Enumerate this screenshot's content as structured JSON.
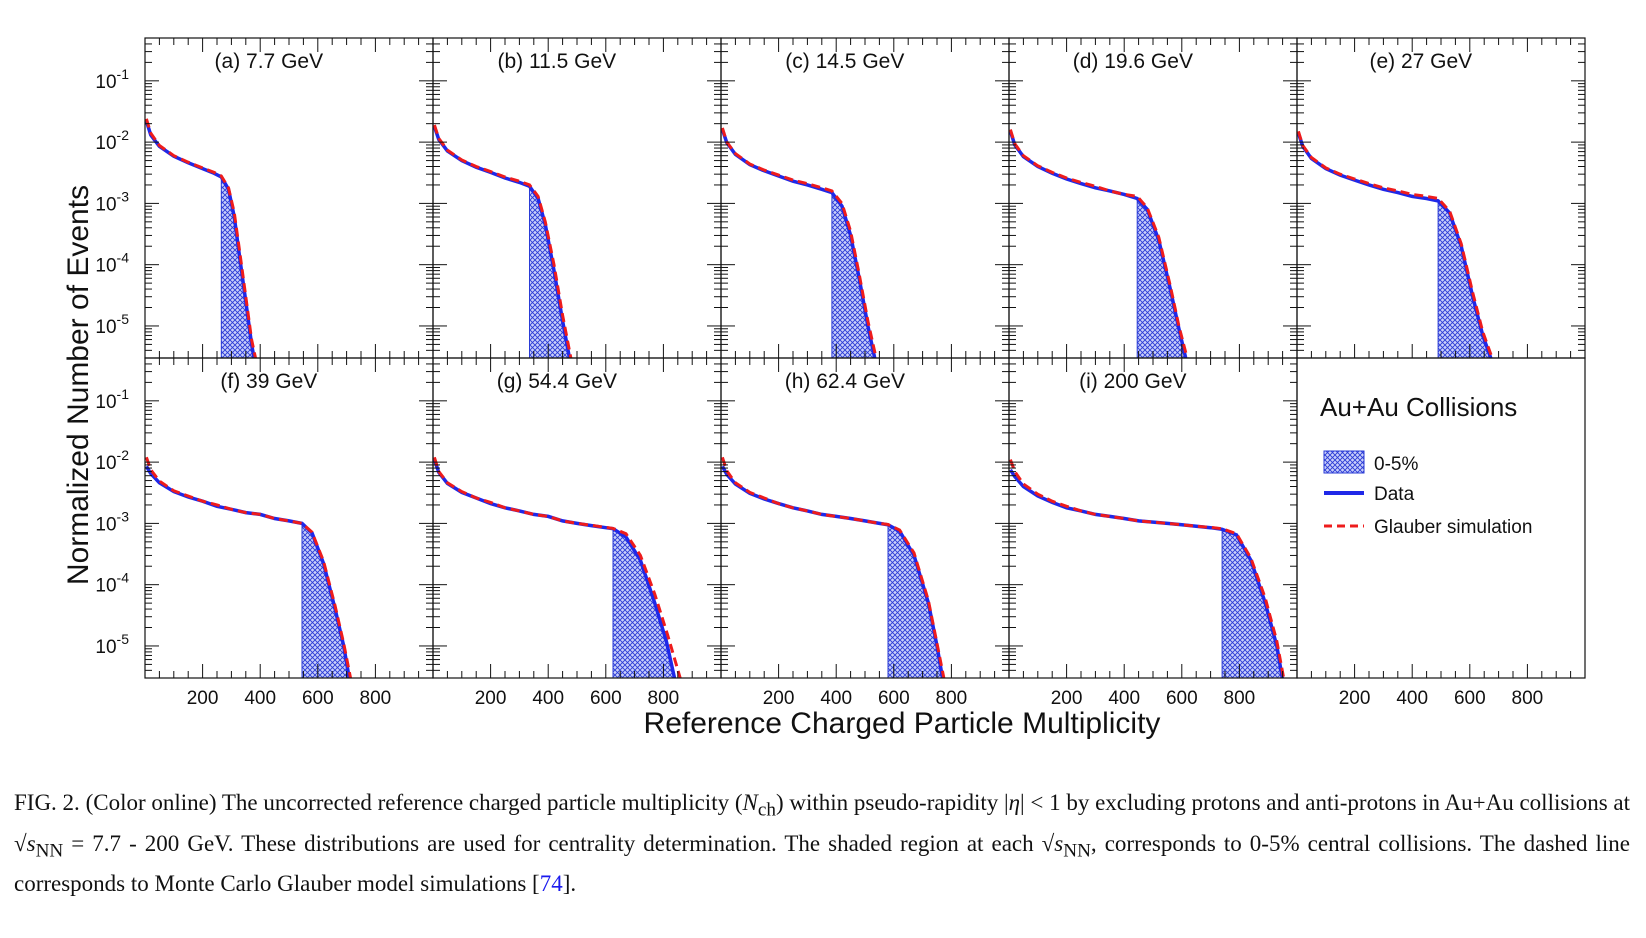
{
  "figure": {
    "ylabel": "Normalized Number of Events",
    "xlabel": "Reference Charged Particle Multiplicity",
    "legend": {
      "title": "Au+Au Collisions",
      "entries": [
        "0-5%",
        "Data",
        "Glauber simulation"
      ]
    }
  },
  "colors": {
    "data": "#1f28e8",
    "glauber": "#ee1c1c",
    "shade": "#2a3bd6",
    "axis": "#111111"
  },
  "chart_data": [
    {
      "type": "line",
      "title": "(a) 7.7 GeV",
      "yscale": "log",
      "xlim": [
        0,
        1000
      ],
      "ylim": [
        3e-06,
        0.5
      ],
      "xticks": [
        200,
        400,
        600,
        800
      ],
      "yticks": [
        "10^-1",
        "10^-2",
        "10^-3",
        "10^-4",
        "10^-5"
      ],
      "shaded_range": [
        265,
        380
      ],
      "series": [
        {
          "name": "Data",
          "x": [
            5,
            20,
            50,
            100,
            150,
            200,
            240,
            265,
            290,
            310,
            330,
            350,
            370,
            380
          ],
          "y": [
            0.022,
            0.013,
            0.0085,
            0.0059,
            0.0046,
            0.0037,
            0.0031,
            0.0027,
            0.0017,
            0.0006,
            0.00012,
            2.5e-05,
            5e-06,
            2.8e-06
          ]
        },
        {
          "name": "Glauber simulation",
          "x": [
            5,
            20,
            50,
            100,
            150,
            200,
            240,
            265,
            290,
            310,
            330,
            350,
            370,
            385
          ],
          "y": [
            0.024,
            0.014,
            0.0088,
            0.006,
            0.0047,
            0.0038,
            0.0032,
            0.0028,
            0.0018,
            0.0007,
            0.00015,
            3e-05,
            6e-06,
            2.8e-06
          ]
        }
      ]
    },
    {
      "type": "line",
      "title": "(b) 11.5 GeV",
      "yscale": "log",
      "xlim": [
        0,
        1000
      ],
      "ylim": [
        3e-06,
        0.5
      ],
      "xticks": [
        200,
        400,
        600,
        800
      ],
      "yticks": [
        "10^-1",
        "10^-2",
        "10^-3",
        "10^-4",
        "10^-5"
      ],
      "shaded_range": [
        335,
        480
      ],
      "series": [
        {
          "name": "Data",
          "x": [
            5,
            20,
            50,
            100,
            150,
            200,
            250,
            300,
            335,
            365,
            390,
            420,
            450,
            475
          ],
          "y": [
            0.018,
            0.011,
            0.0072,
            0.005,
            0.0039,
            0.0032,
            0.0026,
            0.0022,
            0.0019,
            0.0012,
            0.00045,
            8e-05,
            1.2e-05,
            2.8e-06
          ]
        },
        {
          "name": "Glauber simulation",
          "x": [
            5,
            20,
            50,
            100,
            150,
            200,
            250,
            300,
            335,
            365,
            390,
            420,
            450,
            480
          ],
          "y": [
            0.019,
            0.0115,
            0.0074,
            0.0051,
            0.004,
            0.0033,
            0.0027,
            0.0023,
            0.002,
            0.0013,
            0.0005,
            0.0001,
            1.5e-05,
            2.8e-06
          ]
        }
      ]
    },
    {
      "type": "line",
      "title": "(c) 14.5 GeV",
      "yscale": "log",
      "xlim": [
        0,
        1000
      ],
      "ylim": [
        3e-06,
        0.5
      ],
      "xticks": [
        200,
        400,
        600,
        800
      ],
      "yticks": [
        "10^-1",
        "10^-2",
        "10^-3",
        "10^-4",
        "10^-5"
      ],
      "shaded_range": [
        385,
        540
      ],
      "series": [
        {
          "name": "Data",
          "x": [
            5,
            20,
            50,
            100,
            150,
            200,
            250,
            300,
            350,
            385,
            420,
            450,
            480,
            510,
            535
          ],
          "y": [
            0.016,
            0.0098,
            0.0063,
            0.0043,
            0.0034,
            0.0028,
            0.0023,
            0.002,
            0.0017,
            0.0015,
            0.0009,
            0.0003,
            6e-05,
            1e-05,
            2.8e-06
          ]
        },
        {
          "name": "Glauber simulation",
          "x": [
            5,
            20,
            50,
            100,
            150,
            200,
            250,
            300,
            350,
            385,
            420,
            450,
            480,
            510,
            540
          ],
          "y": [
            0.017,
            0.01,
            0.0065,
            0.0044,
            0.0035,
            0.0029,
            0.0024,
            0.0021,
            0.0018,
            0.0016,
            0.001,
            0.00035,
            7e-05,
            1.2e-05,
            2.8e-06
          ]
        }
      ]
    },
    {
      "type": "line",
      "title": "(d) 19.6 GeV",
      "yscale": "log",
      "xlim": [
        0,
        1000
      ],
      "ylim": [
        3e-06,
        0.5
      ],
      "xticks": [
        200,
        400,
        600,
        800
      ],
      "yticks": [
        "10^-1",
        "10^-2",
        "10^-3",
        "10^-4",
        "10^-5"
      ],
      "shaded_range": [
        445,
        615
      ],
      "series": [
        {
          "name": "Data",
          "x": [
            5,
            20,
            50,
            100,
            150,
            200,
            250,
            300,
            350,
            400,
            445,
            480,
            520,
            560,
            590,
            615
          ],
          "y": [
            0.015,
            0.009,
            0.0058,
            0.004,
            0.0031,
            0.0025,
            0.0021,
            0.0018,
            0.0016,
            0.0014,
            0.0012,
            0.0008,
            0.00025,
            4e-05,
            9e-06,
            2.8e-06
          ]
        },
        {
          "name": "Glauber simulation",
          "x": [
            5,
            20,
            50,
            100,
            150,
            200,
            250,
            300,
            350,
            400,
            445,
            480,
            520,
            560,
            590,
            620
          ],
          "y": [
            0.016,
            0.0094,
            0.006,
            0.0041,
            0.0032,
            0.0026,
            0.0022,
            0.0019,
            0.0016,
            0.0014,
            0.0013,
            0.00085,
            0.00028,
            4.5e-05,
            1e-05,
            2.8e-06
          ]
        }
      ]
    },
    {
      "type": "line",
      "title": "(e) 27 GeV",
      "yscale": "log",
      "xlim": [
        0,
        1000
      ],
      "ylim": [
        3e-06,
        0.5
      ],
      "xticks": [
        200,
        400,
        600,
        800
      ],
      "yticks": [
        "10^-1",
        "10^-2",
        "10^-3",
        "10^-4",
        "10^-5"
      ],
      "shaded_range": [
        490,
        675
      ],
      "series": [
        {
          "name": "Data",
          "x": [
            5,
            20,
            50,
            100,
            150,
            200,
            250,
            300,
            350,
            400,
            450,
            490,
            530,
            570,
            610,
            645,
            675
          ],
          "y": [
            0.014,
            0.0085,
            0.0054,
            0.0037,
            0.0029,
            0.0024,
            0.002,
            0.0017,
            0.0015,
            0.0013,
            0.0012,
            0.0011,
            0.0007,
            0.0002,
            3e-05,
            7e-06,
            2.8e-06
          ]
        },
        {
          "name": "Glauber simulation",
          "x": [
            5,
            20,
            50,
            100,
            150,
            200,
            250,
            300,
            350,
            400,
            450,
            490,
            530,
            570,
            610,
            645,
            680
          ],
          "y": [
            0.015,
            0.0088,
            0.0056,
            0.0038,
            0.003,
            0.0025,
            0.0021,
            0.0018,
            0.0016,
            0.0014,
            0.0013,
            0.0012,
            0.00075,
            0.00022,
            3.5e-05,
            8e-06,
            2.8e-06
          ]
        }
      ]
    },
    {
      "type": "line",
      "title": "(f) 39 GeV",
      "yscale": "log",
      "xlim": [
        0,
        1000
      ],
      "ylim": [
        3e-06,
        0.5
      ],
      "xticks": [
        200,
        400,
        600,
        800
      ],
      "yticks": [
        "10^-1",
        "10^-2",
        "10^-3",
        "10^-4",
        "10^-5"
      ],
      "shaded_range": [
        545,
        710
      ],
      "series": [
        {
          "name": "Data",
          "x": [
            5,
            20,
            50,
            100,
            150,
            200,
            250,
            300,
            350,
            400,
            450,
            500,
            545,
            580,
            620,
            660,
            690,
            710
          ],
          "y": [
            0.0085,
            0.0065,
            0.0046,
            0.0033,
            0.0027,
            0.0023,
            0.0019,
            0.0017,
            0.0015,
            0.0014,
            0.0012,
            0.0011,
            0.001,
            0.0007,
            0.00022,
            4e-05,
            1e-05,
            2.8e-06
          ]
        },
        {
          "name": "Glauber simulation",
          "x": [
            5,
            20,
            50,
            100,
            150,
            200,
            250,
            300,
            350,
            400,
            450,
            500,
            545,
            580,
            620,
            660,
            690,
            715
          ],
          "y": [
            0.012,
            0.0075,
            0.0049,
            0.0034,
            0.0028,
            0.0023,
            0.002,
            0.0017,
            0.0015,
            0.0014,
            0.0012,
            0.0011,
            0.001,
            0.00072,
            0.00024,
            4.5e-05,
            1.1e-05,
            2.8e-06
          ]
        }
      ]
    },
    {
      "type": "line",
      "title": "(g) 54.4 GeV",
      "yscale": "log",
      "xlim": [
        0,
        1000
      ],
      "ylim": [
        3e-06,
        0.5
      ],
      "xticks": [
        200,
        400,
        600,
        800
      ],
      "yticks": [
        "10^-1",
        "10^-2",
        "10^-3",
        "10^-4",
        "10^-5"
      ],
      "shaded_range": [
        625,
        840
      ],
      "series": [
        {
          "name": "Data",
          "x": [
            5,
            20,
            50,
            100,
            150,
            200,
            250,
            300,
            350,
            400,
            450,
            500,
            550,
            600,
            625,
            670,
            720,
            770,
            810,
            840
          ],
          "y": [
            0.011,
            0.0068,
            0.0045,
            0.0032,
            0.0026,
            0.0021,
            0.0018,
            0.0016,
            0.0014,
            0.0013,
            0.0011,
            0.001,
            0.00092,
            0.00085,
            0.00082,
            0.0006,
            0.00025,
            5e-05,
            1.2e-05,
            2.8e-06
          ]
        },
        {
          "name": "Glauber simulation",
          "x": [
            5,
            20,
            50,
            100,
            150,
            200,
            250,
            300,
            350,
            400,
            450,
            500,
            550,
            600,
            625,
            670,
            720,
            770,
            815,
            860
          ],
          "y": [
            0.012,
            0.007,
            0.0046,
            0.0033,
            0.0026,
            0.0022,
            0.0018,
            0.0016,
            0.0014,
            0.0013,
            0.0011,
            0.001,
            0.00093,
            0.00086,
            0.00083,
            0.00068,
            0.0003,
            7e-05,
            1.5e-05,
            2.8e-06
          ]
        }
      ]
    },
    {
      "type": "line",
      "title": "(h) 62.4 GeV",
      "yscale": "log",
      "xlim": [
        0,
        1000
      ],
      "ylim": [
        3e-06,
        0.5
      ],
      "xticks": [
        200,
        400,
        600,
        800
      ],
      "yticks": [
        "10^-1",
        "10^-2",
        "10^-3",
        "10^-4",
        "10^-5"
      ],
      "shaded_range": [
        580,
        770
      ],
      "series": [
        {
          "name": "Data",
          "x": [
            5,
            20,
            50,
            100,
            150,
            200,
            250,
            300,
            350,
            400,
            450,
            500,
            550,
            580,
            620,
            670,
            720,
            750,
            770
          ],
          "y": [
            0.0085,
            0.0063,
            0.0044,
            0.0031,
            0.0025,
            0.0021,
            0.0018,
            0.0016,
            0.0014,
            0.0013,
            0.0012,
            0.0011,
            0.001,
            0.00095,
            0.00075,
            0.0003,
            5e-05,
            1e-05,
            2.8e-06
          ]
        },
        {
          "name": "Glauber simulation",
          "x": [
            5,
            20,
            50,
            100,
            150,
            200,
            250,
            300,
            350,
            400,
            450,
            500,
            550,
            580,
            620,
            670,
            720,
            750,
            775
          ],
          "y": [
            0.012,
            0.0072,
            0.0046,
            0.0032,
            0.0026,
            0.0021,
            0.0018,
            0.0016,
            0.0014,
            0.0013,
            0.0012,
            0.0011,
            0.001,
            0.00096,
            0.00078,
            0.00033,
            5.5e-05,
            1.1e-05,
            2.8e-06
          ]
        }
      ]
    },
    {
      "type": "line",
      "title": "(i) 200 GeV",
      "yscale": "log",
      "xlim": [
        0,
        1000
      ],
      "ylim": [
        3e-06,
        0.5
      ],
      "xticks": [
        200,
        400,
        600,
        800
      ],
      "yticks": [
        "10^-1",
        "10^-2",
        "10^-3",
        "10^-4",
        "10^-5"
      ],
      "shaded_range": [
        740,
        950
      ],
      "series": [
        {
          "name": "Data",
          "x": [
            5,
            20,
            50,
            100,
            150,
            200,
            250,
            300,
            350,
            400,
            450,
            500,
            550,
            600,
            650,
            700,
            740,
            790,
            840,
            890,
            930,
            950
          ],
          "y": [
            0.0075,
            0.0058,
            0.004,
            0.0028,
            0.0022,
            0.0018,
            0.0016,
            0.0014,
            0.0013,
            0.0012,
            0.0011,
            0.00105,
            0.001,
            0.00095,
            0.0009,
            0.00085,
            0.0008,
            0.00065,
            0.00025,
            5e-05,
            1e-05,
            2.8e-06
          ]
        },
        {
          "name": "Glauber simulation",
          "x": [
            5,
            20,
            50,
            100,
            150,
            200,
            250,
            300,
            350,
            400,
            450,
            500,
            550,
            600,
            650,
            700,
            740,
            790,
            840,
            890,
            930,
            955
          ],
          "y": [
            0.011,
            0.007,
            0.0044,
            0.003,
            0.0023,
            0.0019,
            0.0016,
            0.0014,
            0.0013,
            0.0012,
            0.0011,
            0.00105,
            0.001,
            0.00095,
            0.0009,
            0.00086,
            0.00082,
            0.00068,
            0.00027,
            6e-05,
            1.2e-05,
            2.8e-06
          ]
        }
      ]
    }
  ]
}
